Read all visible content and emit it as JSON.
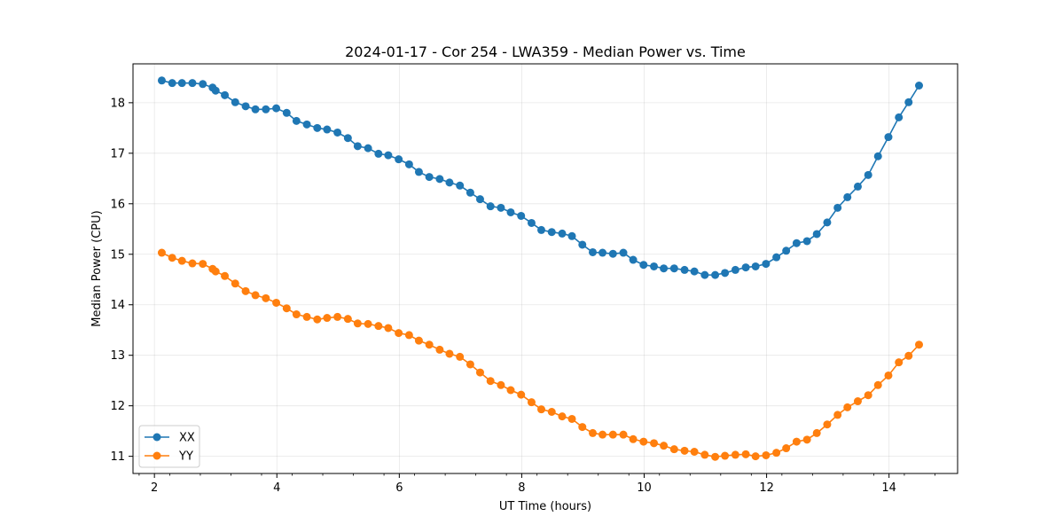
{
  "chart_data": {
    "type": "line",
    "title": "2024-01-17 - Cor 254 - LWA359 - Median Power vs. Time",
    "xlabel": "UT Time (hours)",
    "ylabel": "Median Power (CPU)",
    "xlim": [
      1.65,
      15.12
    ],
    "ylim": [
      10.66,
      18.77
    ],
    "xticks": [
      2,
      4,
      6,
      8,
      10,
      12,
      14
    ],
    "xtick_labels": [
      "2",
      "4",
      "6",
      "8",
      "10",
      "12",
      "14"
    ],
    "yticks": [
      11,
      12,
      13,
      14,
      15,
      16,
      17,
      18
    ],
    "ytick_labels": [
      "11",
      "12",
      "13",
      "14",
      "15",
      "16",
      "17",
      "18"
    ],
    "grid": true,
    "legend_position": "lower-left",
    "x": [
      2.12,
      2.29,
      2.45,
      2.62,
      2.79,
      2.95,
      3.0,
      3.15,
      3.32,
      3.49,
      3.65,
      3.82,
      3.99,
      4.16,
      4.32,
      4.49,
      4.66,
      4.82,
      4.99,
      5.16,
      5.32,
      5.49,
      5.66,
      5.82,
      5.99,
      6.16,
      6.32,
      6.49,
      6.66,
      6.82,
      6.99,
      7.16,
      7.32,
      7.49,
      7.66,
      7.82,
      7.99,
      8.16,
      8.32,
      8.49,
      8.66,
      8.82,
      8.99,
      9.16,
      9.32,
      9.49,
      9.66,
      9.82,
      9.99,
      10.16,
      10.32,
      10.49,
      10.66,
      10.82,
      10.99,
      11.16,
      11.32,
      11.49,
      11.66,
      11.82,
      11.99,
      12.16,
      12.32,
      12.49,
      12.66,
      12.82,
      12.99,
      13.16,
      13.32,
      13.49,
      13.66,
      13.82,
      13.99,
      14.16,
      14.32,
      14.49
    ],
    "series": [
      {
        "name": "XX",
        "color": "#1f77b4",
        "values": [
          18.44,
          18.39,
          18.39,
          18.39,
          18.37,
          18.3,
          18.24,
          18.15,
          18.01,
          17.93,
          17.87,
          17.87,
          17.89,
          17.8,
          17.64,
          17.57,
          17.5,
          17.47,
          17.41,
          17.3,
          17.14,
          17.1,
          16.99,
          16.96,
          16.88,
          16.78,
          16.63,
          16.53,
          16.49,
          16.42,
          16.36,
          16.22,
          16.09,
          15.95,
          15.92,
          15.83,
          15.76,
          15.62,
          15.48,
          15.44,
          15.41,
          15.36,
          15.19,
          15.04,
          15.03,
          15.01,
          15.03,
          14.89,
          14.79,
          14.76,
          14.72,
          14.72,
          14.69,
          14.66,
          14.59,
          14.59,
          14.63,
          14.69,
          14.74,
          14.76,
          14.81,
          14.94,
          15.07,
          15.22,
          15.26,
          15.4,
          15.63,
          15.92,
          16.13,
          16.34,
          16.57,
          16.94,
          17.32,
          17.71,
          18.01,
          18.34
        ]
      },
      {
        "name": "YY",
        "color": "#ff7f0e",
        "values": [
          15.03,
          14.93,
          14.87,
          14.82,
          14.81,
          14.71,
          14.66,
          14.57,
          14.42,
          14.27,
          14.19,
          14.13,
          14.04,
          13.93,
          13.81,
          13.76,
          13.71,
          13.74,
          13.76,
          13.72,
          13.63,
          13.62,
          13.58,
          13.54,
          13.44,
          13.4,
          13.29,
          13.21,
          13.11,
          13.03,
          12.97,
          12.82,
          12.66,
          12.49,
          12.41,
          12.31,
          12.22,
          12.07,
          11.93,
          11.88,
          11.79,
          11.74,
          11.58,
          11.46,
          11.43,
          11.43,
          11.43,
          11.34,
          11.29,
          11.26,
          11.21,
          11.14,
          11.11,
          11.09,
          11.03,
          10.99,
          11.01,
          11.03,
          11.04,
          11.0,
          11.02,
          11.07,
          11.16,
          11.29,
          11.33,
          11.46,
          11.63,
          11.82,
          11.97,
          12.09,
          12.21,
          12.41,
          12.6,
          12.86,
          12.99,
          13.21
        ]
      }
    ]
  }
}
